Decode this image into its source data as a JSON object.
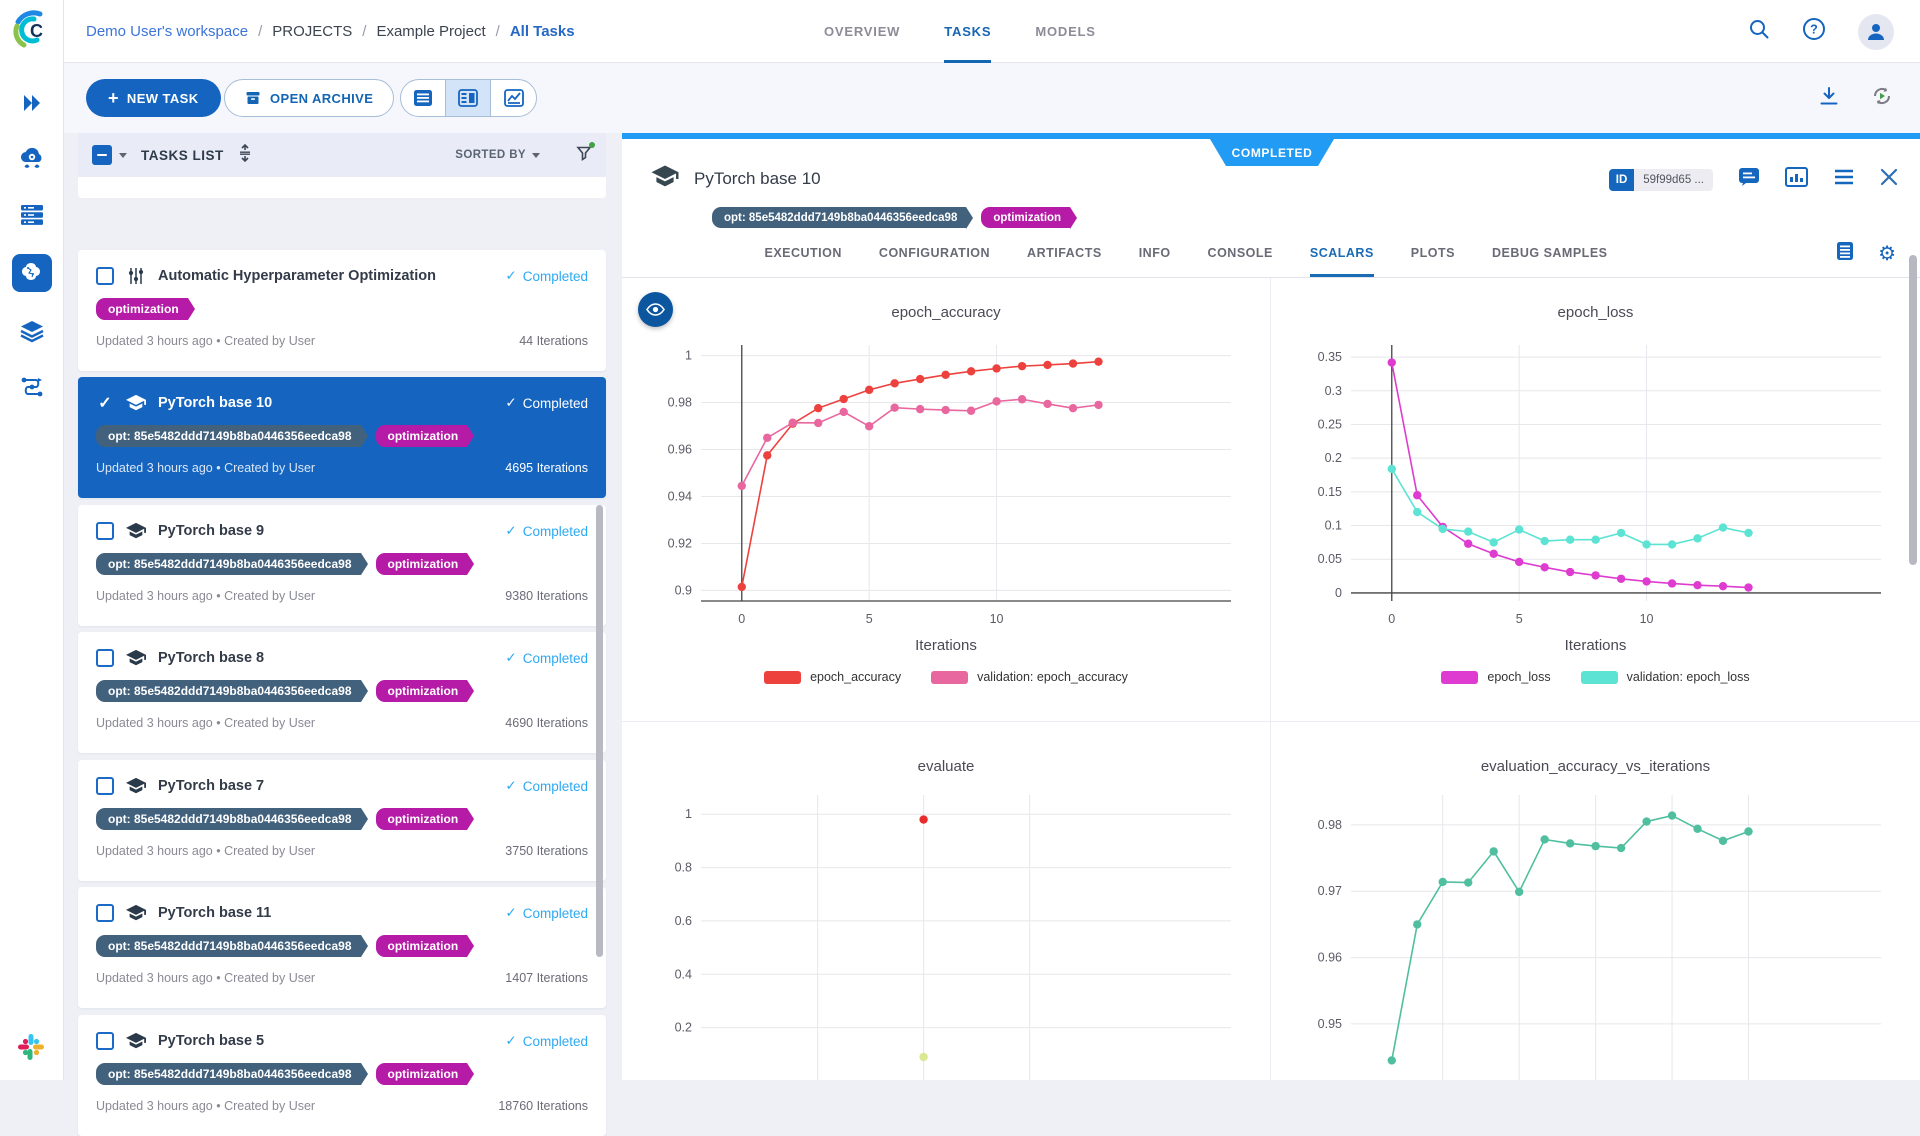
{
  "topbar": {
    "breadcrumb": [
      "Demo User's workspace",
      "PROJECTS",
      "Example Project",
      "All Tasks"
    ],
    "tabs": [
      "OVERVIEW",
      "TASKS",
      "MODELS"
    ],
    "active_tab": "TASKS"
  },
  "toolbar": {
    "new_task": "NEW TASK",
    "open_archive": "OPEN ARCHIVE"
  },
  "icons": {
    "rail": [
      "expand-sidebar",
      "cloud-apps",
      "workers-queues",
      "projects-brain",
      "datasets-layers",
      "pipelines",
      "slack"
    ],
    "top": [
      "search",
      "help",
      "user-avatar"
    ],
    "toolbar": [
      "list-view",
      "split-view",
      "chart-view",
      "download",
      "auto-refresh"
    ],
    "detail": [
      "comment",
      "preview",
      "menu",
      "close",
      "table-view",
      "settings-gear",
      "eye"
    ]
  },
  "tasklist": {
    "title": "TASKS LIST",
    "sorted_by": "SORTED BY",
    "tasks": [
      {
        "title": "Automatic Hyperparameter Optimization",
        "status": "Completed",
        "tags": [
          "optimization"
        ],
        "meta": "Updated 3 hours ago • Created by User",
        "iterations": "44 Iterations",
        "selected": false
      },
      {
        "title": "PyTorch base 10",
        "status": "Completed",
        "tags": [
          "opt: 85e5482ddd7149b8ba0446356eedca98",
          "optimization"
        ],
        "meta": "Updated 3 hours ago • Created by User",
        "iterations": "4695 Iterations",
        "selected": true
      },
      {
        "title": "PyTorch base 9",
        "status": "Completed",
        "tags": [
          "opt: 85e5482ddd7149b8ba0446356eedca98",
          "optimization"
        ],
        "meta": "Updated 3 hours ago • Created by User",
        "iterations": "9380 Iterations",
        "selected": false
      },
      {
        "title": "PyTorch base 8",
        "status": "Completed",
        "tags": [
          "opt: 85e5482ddd7149b8ba0446356eedca98",
          "optimization"
        ],
        "meta": "Updated 3 hours ago • Created by User",
        "iterations": "4690 Iterations",
        "selected": false
      },
      {
        "title": "PyTorch base 7",
        "status": "Completed",
        "tags": [
          "opt: 85e5482ddd7149b8ba0446356eedca98",
          "optimization"
        ],
        "meta": "Updated 3 hours ago • Created by User",
        "iterations": "3750 Iterations",
        "selected": false
      },
      {
        "title": "PyTorch base 11",
        "status": "Completed",
        "tags": [
          "opt: 85e5482ddd7149b8ba0446356eedca98",
          "optimization"
        ],
        "meta": "Updated 3 hours ago • Created by User",
        "iterations": "1407 Iterations",
        "selected": false
      },
      {
        "title": "PyTorch base 5",
        "status": "Completed",
        "tags": [
          "opt: 85e5482ddd7149b8ba0446356eedca98",
          "optimization"
        ],
        "meta": "Updated 3 hours ago • Created by User",
        "iterations": "18760 Iterations",
        "selected": false
      }
    ]
  },
  "detail": {
    "ribbon": "COMPLETED",
    "title": "PyTorch base 10",
    "id_label": "ID",
    "id_value": "59f99d65 ...",
    "tags": [
      "opt: 85e5482ddd7149b8ba0446356eedca98",
      "optimization"
    ],
    "tabs": [
      "EXECUTION",
      "CONFIGURATION",
      "ARTIFACTS",
      "INFO",
      "CONSOLE",
      "SCALARS",
      "PLOTS",
      "DEBUG SAMPLES"
    ],
    "active_tab": "SCALARS"
  },
  "chart_data": [
    {
      "type": "line",
      "title": "epoch_accuracy",
      "xlabel": "Iterations",
      "x": [
        0,
        1,
        2,
        3,
        4,
        5,
        6,
        7,
        8,
        9,
        10,
        11,
        12,
        13,
        14
      ],
      "series": [
        {
          "name": "epoch_accuracy",
          "color": "#ED413D",
          "values": [
            0.9015,
            0.9575,
            0.971,
            0.9776,
            0.9815,
            0.9854,
            0.9882,
            0.99,
            0.9918,
            0.9933,
            0.9945,
            0.9955,
            0.996,
            0.9966,
            0.9974
          ]
        },
        {
          "name": "validation: epoch_accuracy",
          "color": "#E8679E",
          "values": [
            0.9445,
            0.965,
            0.9714,
            0.9713,
            0.976,
            0.9699,
            0.9778,
            0.9772,
            0.9768,
            0.9765,
            0.9805,
            0.9814,
            0.9794,
            0.9776,
            0.979
          ]
        }
      ],
      "ylim": [
        0.8955,
        1.0045
      ],
      "yticks": [
        0.9,
        0.92,
        0.94,
        0.96,
        0.98,
        1
      ],
      "xlim": [
        -1.6,
        19.2
      ],
      "xticks": [
        0,
        5,
        10
      ],
      "grid": true,
      "legend_position": "bottom",
      "dark_zero_x": true,
      "dark_bottom_axis": true
    },
    {
      "type": "line",
      "title": "epoch_loss",
      "xlabel": "Iterations",
      "x": [
        0,
        1,
        2,
        3,
        4,
        5,
        6,
        7,
        8,
        9,
        10,
        11,
        12,
        13,
        14
      ],
      "series": [
        {
          "name": "epoch_loss",
          "color": "#DE3BD0",
          "values": [
            0.342,
            0.145,
            0.098,
            0.073,
            0.058,
            0.046,
            0.038,
            0.031,
            0.026,
            0.021,
            0.017,
            0.014,
            0.0115,
            0.01,
            0.008
          ]
        },
        {
          "name": "validation: epoch_loss",
          "color": "#5CE3D3",
          "values": [
            0.184,
            0.12,
            0.095,
            0.091,
            0.075,
            0.094,
            0.077,
            0.079,
            0.079,
            0.089,
            0.072,
            0.072,
            0.081,
            0.097,
            0.089
          ]
        }
      ],
      "ylim": [
        -0.012,
        0.368
      ],
      "yticks": [
        0,
        0.05,
        0.1,
        0.15,
        0.2,
        0.25,
        0.3,
        0.35
      ],
      "xlim": [
        -1.6,
        19.2
      ],
      "xticks": [
        0,
        5,
        10
      ],
      "grid": true,
      "legend_position": "bottom",
      "dark_zero_x": true,
      "dark_zero_y": true
    },
    {
      "type": "scatter",
      "title": "evaluate",
      "x": [
        0
      ],
      "series": [
        {
          "color": "#E82B2B",
          "x": [
            0
          ],
          "values": [
            0.98
          ]
        },
        {
          "color": "#DCE793",
          "x": [
            0
          ],
          "values": [
            0.09
          ]
        }
      ],
      "ylim": [
        0,
        1.072
      ],
      "yticks": [
        0.2,
        0.4,
        0.6,
        0.8,
        1
      ],
      "xlim": [
        -1.05,
        1.45
      ],
      "xgrid": [
        -0.5,
        0,
        0.5
      ],
      "grid": true
    },
    {
      "type": "line",
      "title": "evaluation_accuracy_vs_iterations",
      "x": [
        0,
        1,
        2,
        3,
        4,
        5,
        6,
        7,
        8,
        9,
        10,
        11,
        12,
        13,
        14
      ],
      "series": [
        {
          "color": "#4FBF9F",
          "values": [
            0.9445,
            0.965,
            0.9714,
            0.9713,
            0.976,
            0.9699,
            0.9778,
            0.9772,
            0.9768,
            0.9765,
            0.9805,
            0.9814,
            0.9794,
            0.9776,
            0.979
          ]
        }
      ],
      "ylim": [
        0.9414,
        0.9845
      ],
      "yticks": [
        0.95,
        0.96,
        0.97,
        0.98
      ],
      "xlim": [
        -1.6,
        19.2
      ],
      "xgrid": [
        2,
        5,
        8,
        11,
        14
      ],
      "grid": true
    }
  ]
}
